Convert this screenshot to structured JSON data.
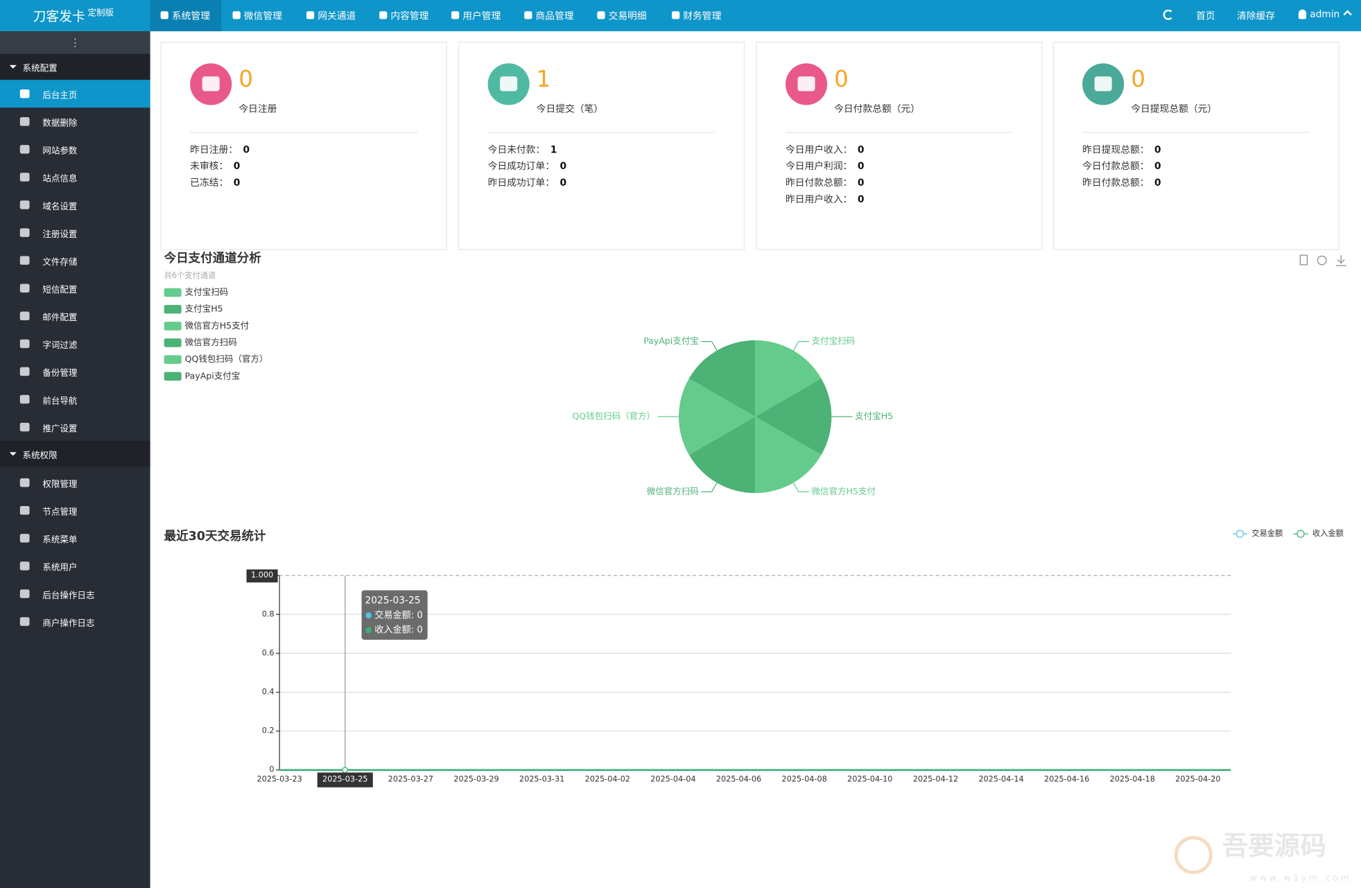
{
  "header": {
    "brand": "刀客发卡",
    "edition": "定制版",
    "nav": [
      "系统管理",
      "微信管理",
      "网关通道",
      "内容管理",
      "用户管理",
      "商品管理",
      "交易明细",
      "财务管理"
    ],
    "right": [
      "首页",
      "清除缓存",
      "admin"
    ]
  },
  "sidebar": {
    "groups": [
      {
        "title": "系统配置",
        "items": [
          "后台主页",
          "数据删除",
          "网站参数",
          "站点信息",
          "域名设置",
          "注册设置",
          "文件存储",
          "短信配置",
          "邮件配置",
          "字词过滤",
          "备份管理",
          "前台导航",
          "推广设置"
        ]
      },
      {
        "title": "系统权限",
        "items": [
          "权限管理",
          "节点管理",
          "系统菜单",
          "系统用户",
          "后台操作日志",
          "商户操作日志"
        ]
      }
    ]
  },
  "cards": [
    {
      "value": 0,
      "label": "今日注册",
      "color": "#e9588a",
      "rows": [
        {
          "label": "昨日注册：",
          "value": 0
        },
        {
          "label": "未审核：",
          "value": 0
        },
        {
          "label": "已冻结：",
          "value": 0
        }
      ]
    },
    {
      "value": 1,
      "label": "今日提交（笔）",
      "color": "#4fb9a2",
      "rows": [
        {
          "label": "今日未付款：",
          "value": 1
        },
        {
          "label": "今日成功订单：",
          "value": 0
        },
        {
          "label": "昨日成功订单：",
          "value": 0
        }
      ]
    },
    {
      "value": 0,
      "label": "今日付款总额（元）",
      "color": "#e9588a",
      "rows": [
        {
          "label": "今日用户收入：",
          "value": 0
        },
        {
          "label": "今日用户利润：",
          "value": 0
        },
        {
          "label": "昨日付款总额：",
          "value": 0
        },
        {
          "label": "昨日用户收入：",
          "value": 0
        }
      ]
    },
    {
      "value": 0,
      "label": "今日提现总额（元）",
      "color": "#4aa999",
      "rows": [
        {
          "label": "昨日提现总额：",
          "value": 0
        },
        {
          "label": "今日付款总额：",
          "value": 0
        },
        {
          "label": "昨日付款总额：",
          "value": 0
        }
      ]
    }
  ],
  "chart_data": [
    {
      "type": "pie",
      "title": "今日支付通道分析",
      "subtitle": "共6个支付通道",
      "categories": [
        "支付宝扫码",
        "支付宝H5",
        "微信官方H5支付",
        "微信官方扫码",
        "QQ钱包扫码（官方）",
        "PayApi支付宝"
      ],
      "values": [
        1,
        1,
        1,
        1,
        1,
        1
      ],
      "colors": [
        "#64cb8c",
        "#4cb276",
        "#64cb8c",
        "#4cb276",
        "#64cb8c",
        "#4cb276"
      ]
    },
    {
      "type": "line",
      "title": "最近30天交易统计",
      "x": [
        "2025-03-23",
        null,
        "2025-03-25",
        null,
        "2025-03-27",
        null,
        "2025-03-29",
        null,
        "2025-03-31",
        null,
        "2025-04-02",
        null,
        "2025-04-04",
        null,
        "2025-04-06",
        null,
        "2025-04-08",
        null,
        "2025-04-10",
        null,
        "2025-04-12",
        null,
        "2025-04-14",
        null,
        "2025-04-16",
        null,
        "2025-04-18",
        null,
        "2025-04-20",
        null
      ],
      "series": [
        {
          "name": "交易金额",
          "color": "#4fc1e9",
          "values": [
            0,
            0,
            0,
            0,
            0,
            0,
            0,
            0,
            0,
            0,
            0,
            0,
            0,
            0,
            0,
            0,
            0,
            0,
            0,
            0,
            0,
            0,
            0,
            0,
            0,
            0,
            0,
            0,
            0,
            0
          ]
        },
        {
          "name": "收入金额",
          "color": "#3aae74",
          "values": [
            0,
            0,
            0,
            0,
            0,
            0,
            0,
            0,
            0,
            0,
            0,
            0,
            0,
            0,
            0,
            0,
            0,
            0,
            0,
            0,
            0,
            0,
            0,
            0,
            0,
            0,
            0,
            0,
            0,
            0
          ]
        }
      ],
      "ylim": [
        0,
        1
      ],
      "yticks": [
        0,
        0.2,
        0.4,
        0.6,
        0.8,
        {
          "value": 1,
          "label": "1.000"
        }
      ],
      "grid": true,
      "tooltip": {
        "title": "2025-03-25",
        "rows": [
          "交易金额: 0",
          "收入金额: 0"
        ]
      }
    }
  ],
  "watermark": {
    "title": "吾要源码",
    "url": "www.w1ym.com"
  }
}
